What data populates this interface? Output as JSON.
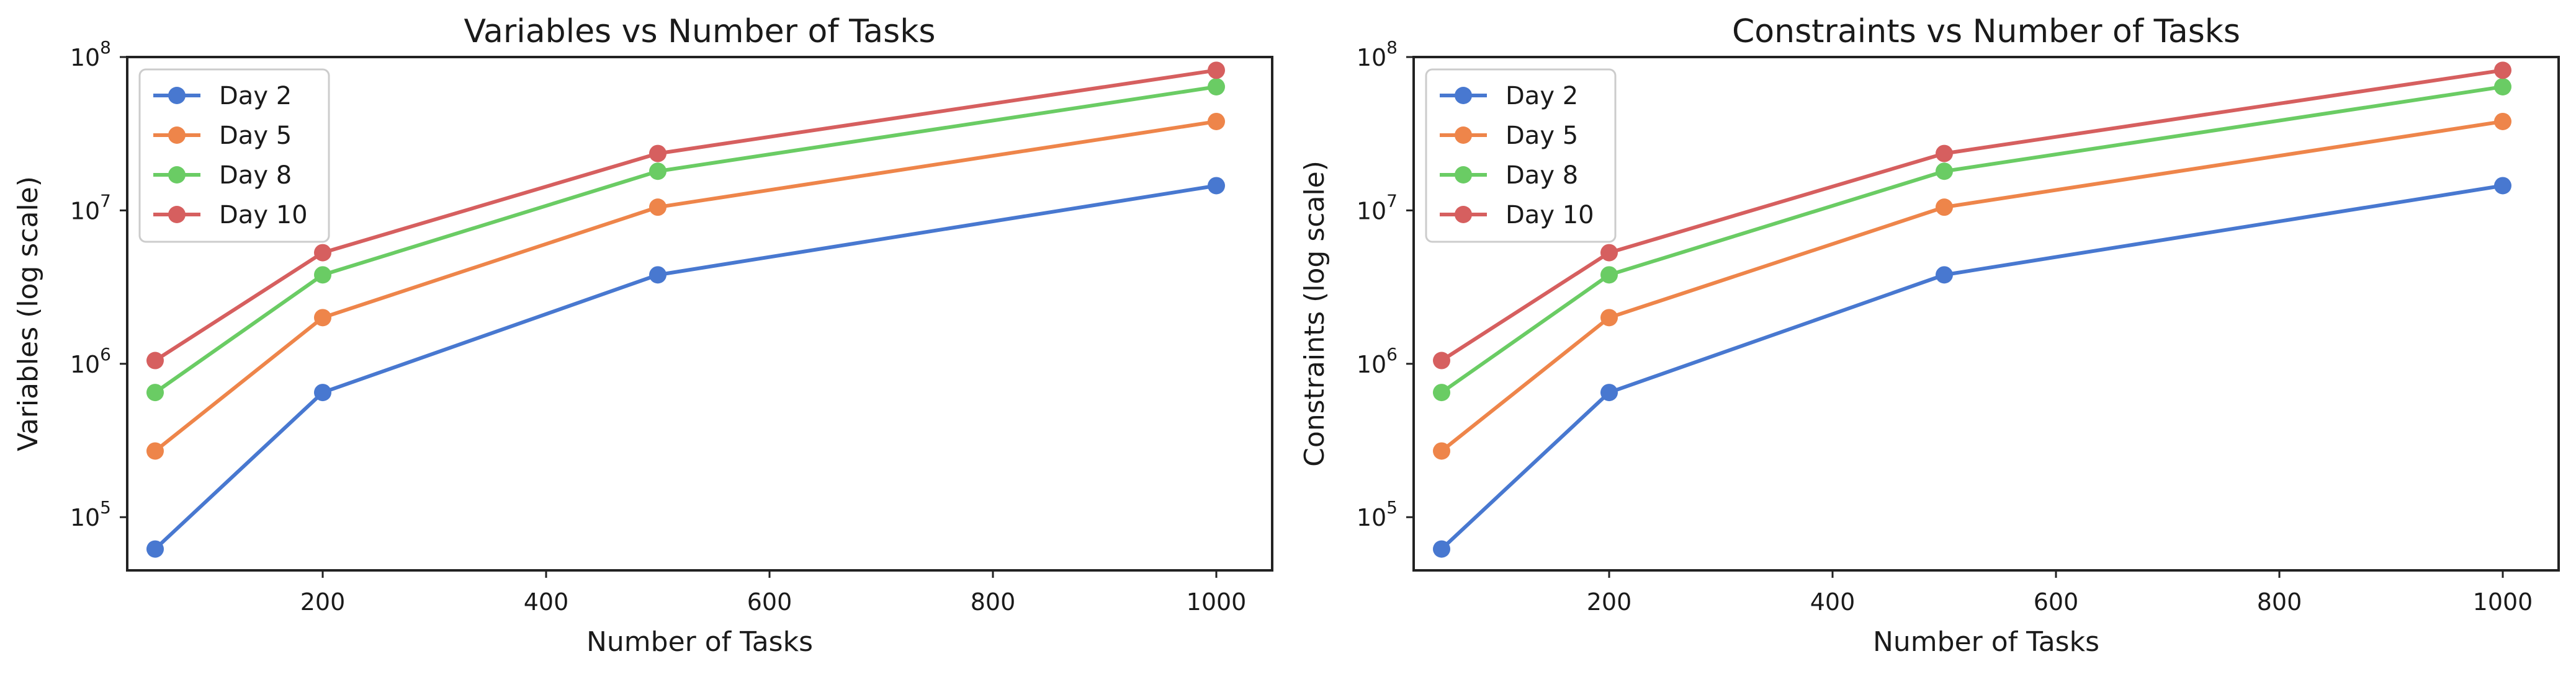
{
  "colors": {
    "day2": "#4878d0",
    "day5": "#ee854a",
    "day8": "#6acc64",
    "day10": "#d65f5f"
  },
  "chart_data": [
    {
      "type": "line",
      "title": "Variables vs Number of Tasks",
      "xlabel": "Number of Tasks",
      "ylabel": "Variables (log scale)",
      "yscale": "log",
      "xlim": [
        25,
        1050
      ],
      "ylim": [
        45000,
        100000000
      ],
      "xticks": [
        200,
        400,
        600,
        800,
        1000
      ],
      "yticks": [
        {
          "base": "10",
          "exp": "5",
          "value": 100000
        },
        {
          "base": "10",
          "exp": "6",
          "value": 1000000
        },
        {
          "base": "10",
          "exp": "7",
          "value": 10000000
        },
        {
          "base": "10",
          "exp": "8",
          "value": 100000000
        }
      ],
      "grid": false,
      "legend": "top-left",
      "x": [
        50,
        200,
        500,
        1000
      ],
      "series": [
        {
          "name": "Day 2",
          "color": "#4878d0",
          "values": [
            62000,
            650000,
            3800000,
            14500000
          ]
        },
        {
          "name": "Day 5",
          "color": "#ee854a",
          "values": [
            270000,
            2000000,
            10500000,
            38000000
          ]
        },
        {
          "name": "Day 8",
          "color": "#6acc64",
          "values": [
            650000,
            3800000,
            18000000,
            64000000
          ]
        },
        {
          "name": "Day 10",
          "color": "#d65f5f",
          "values": [
            1050000,
            5300000,
            23500000,
            82000000
          ]
        }
      ]
    },
    {
      "type": "line",
      "title": "Constraints vs Number of Tasks",
      "xlabel": "Number of Tasks",
      "ylabel": "Constraints (log scale)",
      "yscale": "log",
      "xlim": [
        25,
        1050
      ],
      "ylim": [
        45000,
        100000000
      ],
      "xticks": [
        200,
        400,
        600,
        800,
        1000
      ],
      "yticks": [
        {
          "base": "10",
          "exp": "5",
          "value": 100000
        },
        {
          "base": "10",
          "exp": "6",
          "value": 1000000
        },
        {
          "base": "10",
          "exp": "7",
          "value": 10000000
        },
        {
          "base": "10",
          "exp": "8",
          "value": 100000000
        }
      ],
      "grid": false,
      "legend": "top-left",
      "x": [
        50,
        200,
        500,
        1000
      ],
      "series": [
        {
          "name": "Day 2",
          "color": "#4878d0",
          "values": [
            62000,
            650000,
            3800000,
            14500000
          ]
        },
        {
          "name": "Day 5",
          "color": "#ee854a",
          "values": [
            270000,
            2000000,
            10500000,
            38000000
          ]
        },
        {
          "name": "Day 8",
          "color": "#6acc64",
          "values": [
            650000,
            3800000,
            18000000,
            64000000
          ]
        },
        {
          "name": "Day 10",
          "color": "#d65f5f",
          "values": [
            1050000,
            5300000,
            23500000,
            82000000
          ]
        }
      ]
    }
  ]
}
